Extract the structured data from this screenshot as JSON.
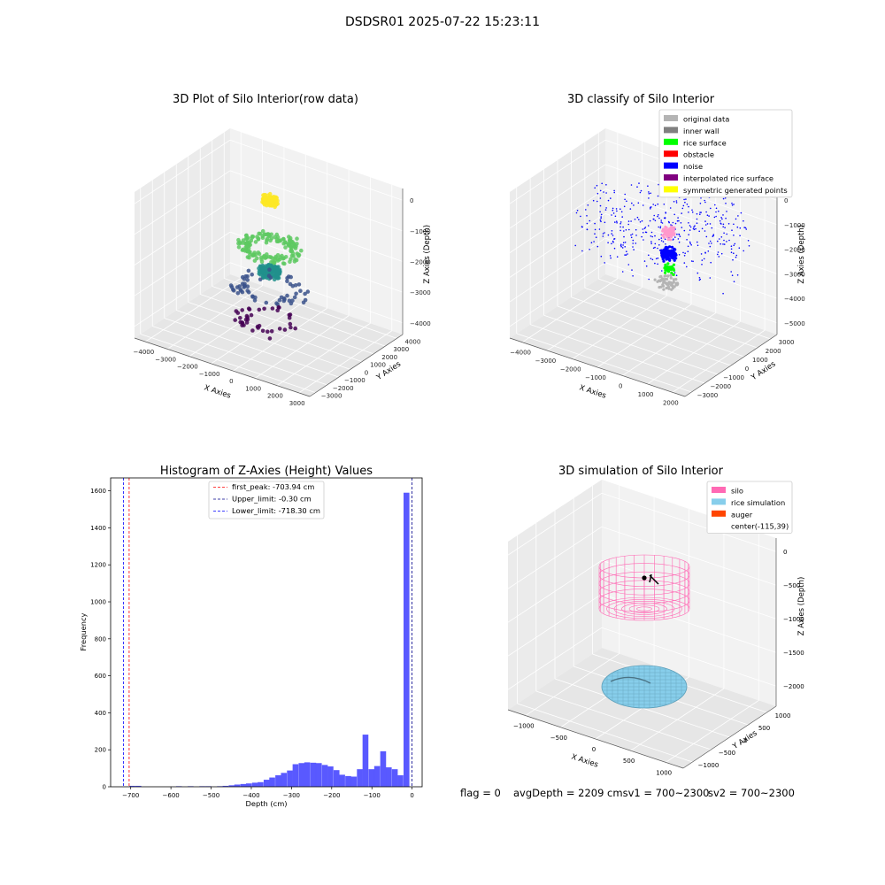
{
  "suptitle": "DSDSR01 2025-07-22 15:23:11",
  "footer": {
    "flag": "flag = 0",
    "avg": "avgDepth = 2209 cmsv1 = 700~2300",
    "sv2": "sv2 = 700~2300"
  },
  "chart_data": [
    {
      "type": "scatter",
      "title": "3D Plot of Silo Interior(row data)",
      "projection": "3d",
      "xlabel": "X Axies",
      "ylabel": "Y Axies",
      "zlabel": "Z Axies (Depth)",
      "xticks": [
        "−4000",
        "−3000",
        "−2000",
        "−1000",
        "0",
        "1000",
        "2000",
        "3000"
      ],
      "yticks": [
        "−3000",
        "−2000",
        "−1000",
        "0",
        "1000",
        "2000",
        "3000",
        "4000"
      ],
      "zticks": [
        "0",
        "−1000",
        "−2000",
        "−3000",
        "−4000"
      ],
      "colormap": "viridis",
      "clusters": [
        {
          "x": 0,
          "y": 0,
          "z": -200,
          "spread": 350,
          "n": 90,
          "color": "#fde725"
        },
        {
          "x": 0,
          "y": 0,
          "z": -1800,
          "spread": 1500,
          "n": 160,
          "color": "#5ec962"
        },
        {
          "x": 0,
          "y": 0,
          "z": -2600,
          "spread": 500,
          "n": 120,
          "color": "#21918c"
        },
        {
          "x": 0,
          "y": 0,
          "z": -3200,
          "spread": 1800,
          "n": 60,
          "color": "#3b528b"
        },
        {
          "x": 0,
          "y": 0,
          "z": -4300,
          "spread": 1600,
          "n": 40,
          "color": "#440154"
        }
      ]
    },
    {
      "type": "scatter",
      "title": "3D classify of Silo Interior",
      "projection": "3d",
      "xlabel": "X Axies",
      "ylabel": "Y Axies",
      "zlabel": "Z Axies (Depth)",
      "xticks": [
        "−4000",
        "−3000",
        "−2000",
        "−1000",
        "0",
        "1000",
        "2000"
      ],
      "yticks": [
        "−3000",
        "−2000",
        "−1000",
        "0",
        "1000",
        "2000",
        "3000"
      ],
      "zticks": [
        "0",
        "−1000",
        "−2000",
        "−3000",
        "−4000",
        "−5000"
      ],
      "legend_position": "upper right",
      "legend": [
        {
          "label": "original data",
          "color": "#b4b4b4"
        },
        {
          "label": "inner wall",
          "color": "#808080"
        },
        {
          "label": "rice surface",
          "color": "#00ff00"
        },
        {
          "label": "obstacle",
          "color": "#ff0000"
        },
        {
          "label": "noise",
          "color": "#0000ff"
        },
        {
          "label": "interpolated rice surface",
          "color": "#800080"
        },
        {
          "label": "symmetric generated points",
          "color": "#ffff00"
        }
      ],
      "clusters": [
        {
          "x": 0,
          "y": 0,
          "z": -1200,
          "spread": 3500,
          "n": 420,
          "color": "#0000ff"
        },
        {
          "x": 300,
          "y": 0,
          "z": -1300,
          "spread": 250,
          "n": 70,
          "color": "#ff99cc"
        },
        {
          "x": 300,
          "y": 0,
          "z": -2200,
          "spread": 300,
          "n": 120,
          "color": "#0000ff"
        },
        {
          "x": 300,
          "y": 0,
          "z": -2800,
          "spread": 250,
          "n": 30,
          "color": "#00ff00"
        },
        {
          "x": 200,
          "y": 0,
          "z": -3400,
          "spread": 500,
          "n": 60,
          "color": "#b4b4b4"
        }
      ]
    },
    {
      "type": "bar",
      "title": "Histogram of Z-Axies (Height) Values",
      "xlabel": "Depth (cm)",
      "ylabel": "Frequency",
      "xlim": [
        -750,
        25
      ],
      "ylim": [
        0,
        1670
      ],
      "xticks": [
        -700,
        -600,
        -500,
        -400,
        -300,
        -200,
        -100,
        0
      ],
      "yticks": [
        0,
        200,
        400,
        600,
        800,
        1000,
        1200,
        1400,
        1600
      ],
      "bar_color": "#5050ff",
      "bin_width": 14.5,
      "bins": [
        {
          "x": -696,
          "y": 5
        },
        {
          "x": -681,
          "y": 5
        },
        {
          "x": -580,
          "y": 3
        },
        {
          "x": -551,
          "y": 3
        },
        {
          "x": -522,
          "y": 3
        },
        {
          "x": -507,
          "y": 3
        },
        {
          "x": -478,
          "y": 3
        },
        {
          "x": -464,
          "y": 5
        },
        {
          "x": -449,
          "y": 8
        },
        {
          "x": -435,
          "y": 12
        },
        {
          "x": -420,
          "y": 15
        },
        {
          "x": -406,
          "y": 18
        },
        {
          "x": -391,
          "y": 22
        },
        {
          "x": -377,
          "y": 25
        },
        {
          "x": -362,
          "y": 38
        },
        {
          "x": -348,
          "y": 50
        },
        {
          "x": -333,
          "y": 62
        },
        {
          "x": -319,
          "y": 75
        },
        {
          "x": -304,
          "y": 88
        },
        {
          "x": -290,
          "y": 122
        },
        {
          "x": -275,
          "y": 128
        },
        {
          "x": -261,
          "y": 132
        },
        {
          "x": -246,
          "y": 130
        },
        {
          "x": -232,
          "y": 128
        },
        {
          "x": -217,
          "y": 118
        },
        {
          "x": -203,
          "y": 110
        },
        {
          "x": -188,
          "y": 90
        },
        {
          "x": -174,
          "y": 65
        },
        {
          "x": -159,
          "y": 58
        },
        {
          "x": -145,
          "y": 55
        },
        {
          "x": -130,
          "y": 95
        },
        {
          "x": -116,
          "y": 282
        },
        {
          "x": -101,
          "y": 95
        },
        {
          "x": -87,
          "y": 112
        },
        {
          "x": -72,
          "y": 192
        },
        {
          "x": -58,
          "y": 105
        },
        {
          "x": -43,
          "y": 95
        },
        {
          "x": -29,
          "y": 62
        },
        {
          "x": -14,
          "y": 1590
        }
      ],
      "vlines": [
        {
          "label": "first_peak: -703.94 cm",
          "x": -703.94,
          "color": "#ff0000"
        },
        {
          "label": "Upper_limit: -0.30 cm",
          "x": -0.3,
          "color": "#00008b"
        },
        {
          "label": "Lower_limit: -718.30 cm",
          "x": -718.3,
          "color": "#0000ff"
        }
      ],
      "legend_position": "upper center"
    },
    {
      "type": "surface",
      "title": "3D simulation of Silo Interior",
      "projection": "3d",
      "xlabel": "X Axies",
      "ylabel": "Y Axies",
      "zlabel": "Z Axies (Depth)",
      "xticks": [
        "−1000",
        "−500",
        "0",
        "500",
        "1000"
      ],
      "yticks": [
        "−1000",
        "−500",
        "0",
        "500",
        "1000"
      ],
      "zticks": [
        "0",
        "−500",
        "−1000",
        "−1500",
        "−2000"
      ],
      "legend_position": "upper right",
      "legend": [
        {
          "label": "silo",
          "color": "#ff69b4"
        },
        {
          "label": "rice simulation",
          "color": "#87ceeb"
        },
        {
          "label": "auger",
          "color": "#ff4500"
        },
        {
          "label": "center(-115,39)",
          "color": ""
        }
      ]
    }
  ]
}
